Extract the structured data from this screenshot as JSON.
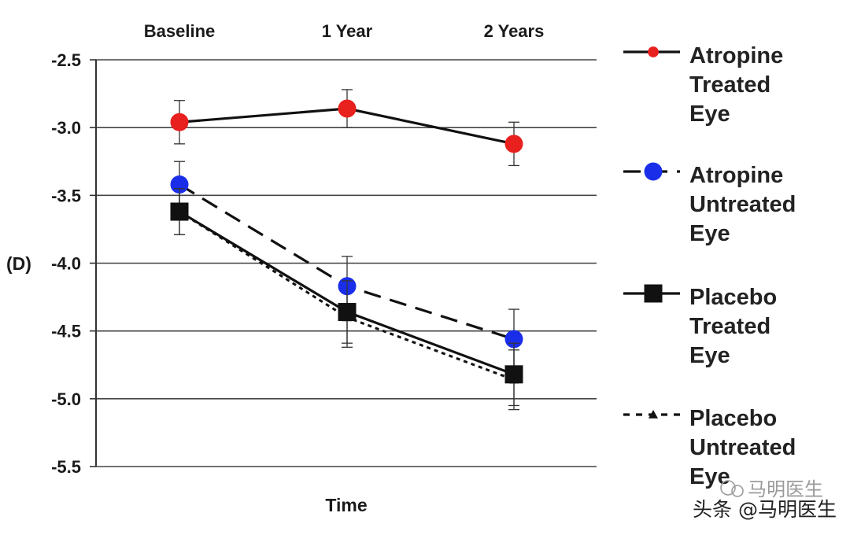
{
  "chart_data": {
    "type": "line",
    "categories": [
      "Baseline",
      "1 Year",
      "2 Years"
    ],
    "xlabel": "Time",
    "ylabel": "(D)",
    "ylim": [
      -5.5,
      -2.5
    ],
    "yticks": [
      "-2.5",
      "-3.0",
      "-3.5",
      "-4.0",
      "-4.5",
      "-5.0",
      "-5.5"
    ],
    "ytick_values": [
      -2.5,
      -3.0,
      -3.5,
      -4.0,
      -4.5,
      -5.0,
      -5.5
    ],
    "grid": "horizontal",
    "legend_position": "right",
    "error_bars": true,
    "series": [
      {
        "name_lines": [
          "Atropine",
          "Treated",
          "Eye"
        ],
        "values": [
          -2.96,
          -2.86,
          -3.12
        ],
        "errors": [
          0.16,
          0.14,
          0.16
        ],
        "color": "#e8201e",
        "marker": "circle",
        "line": "solid"
      },
      {
        "name_lines": [
          "Atropine",
          "Untreated",
          "Eye"
        ],
        "values": [
          -3.42,
          -4.17,
          -4.56
        ],
        "errors": [
          0.17,
          0.22,
          0.22
        ],
        "color": "#1a2eea",
        "marker": "circle",
        "line": "dashed"
      },
      {
        "name_lines": [
          "Placebo",
          "Treated",
          "Eye"
        ],
        "values": [
          -3.62,
          -4.36,
          -4.82
        ],
        "errors": [
          0.17,
          0.23,
          0.23
        ],
        "color": "#111111",
        "marker": "square",
        "line": "solid"
      },
      {
        "name_lines": [
          "Placebo",
          "Untreated",
          "Eye"
        ],
        "values": [
          -3.62,
          -4.4,
          -4.86
        ],
        "errors": [
          0.17,
          0.22,
          0.22
        ],
        "color": "#111111",
        "marker": "triangle",
        "line": "dotted"
      }
    ]
  },
  "watermark": {
    "main": "头条 @马明医生",
    "faint": "马明医生"
  }
}
